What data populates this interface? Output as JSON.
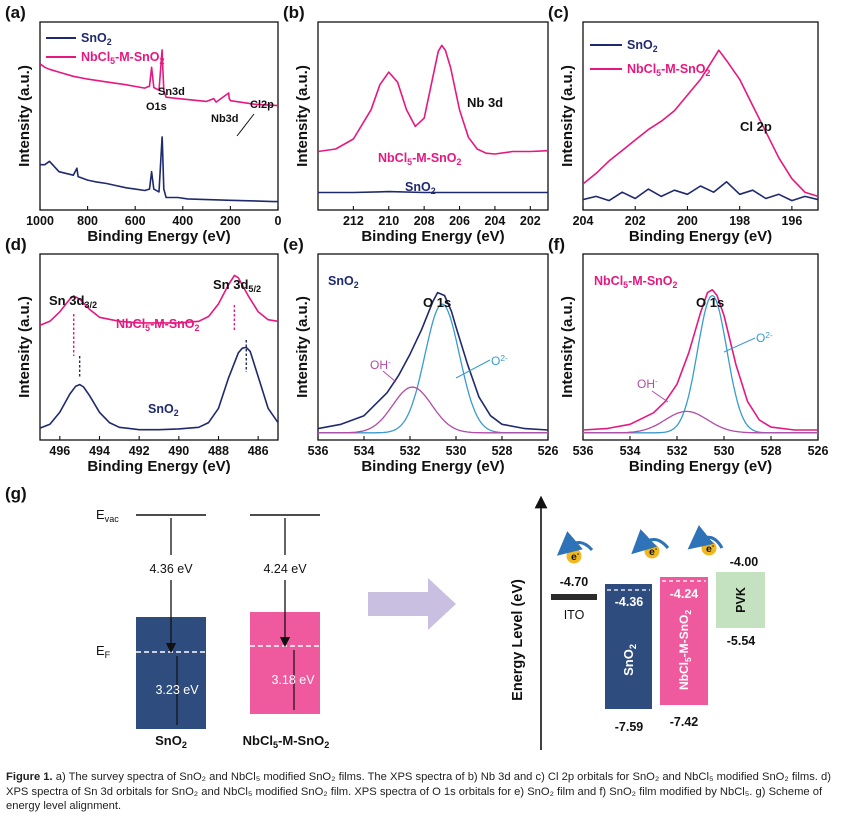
{
  "colors": {
    "sno2": "#1f2a6e",
    "nb": "#e6187f",
    "fit_blue": "#3a9bd1",
    "fit_purple": "#b24aa6",
    "band_sno2": "#2f4c7f",
    "band_nb": "#ef5a9e",
    "pvk": "#c5e2c0",
    "ito": "#2b2b2b",
    "arrow_bg": "#c9bfe0",
    "electron": "#f0b81e"
  },
  "chart_data": [
    {
      "panel": "(a)",
      "type": "line",
      "xlabel": "Binding Energy (eV)",
      "ylabel": "Intensity (a.u.)",
      "xlim": [
        1000,
        0
      ],
      "x_reversed": true,
      "xticks": [
        "1000",
        "800",
        "600",
        "400",
        "200",
        "0"
      ],
      "series": [
        {
          "name": "SnO2",
          "label_main": "SnO",
          "label_sub": "2",
          "color": "#1f2a6e",
          "x": [
            1000,
            980,
            960,
            920,
            860,
            845,
            840,
            800,
            760,
            720,
            680,
            640,
            600,
            560,
            540,
            531,
            522,
            500,
            487,
            486,
            480,
            470,
            420,
            380,
            300,
            200,
            100,
            20,
            0
          ],
          "y": [
            0.55,
            0.55,
            0.6,
            0.45,
            0.4,
            0.5,
            0.38,
            0.33,
            0.3,
            0.28,
            0.25,
            0.22,
            0.2,
            0.18,
            0.2,
            0.45,
            0.2,
            0.16,
            0.95,
            0.9,
            0.2,
            0.08,
            0.08,
            0.06,
            0.05,
            0.04,
            0.03,
            0.02,
            0.02
          ]
        },
        {
          "name": "NbCl5-M-SnO2",
          "label_main": "NbCl",
          "label_sub": "5",
          "label_tail": "-M-SnO",
          "label_sub2": "2",
          "color": "#e6187f",
          "x": [
            1000,
            980,
            960,
            920,
            860,
            800,
            720,
            640,
            560,
            540,
            531,
            522,
            500,
            487,
            486,
            480,
            470,
            420,
            300,
            270,
            260,
            207,
            205,
            199,
            100,
            0
          ],
          "y": [
            2.0,
            1.95,
            1.92,
            1.88,
            1.82,
            1.78,
            1.74,
            1.7,
            1.65,
            1.68,
            1.95,
            1.66,
            1.62,
            2.2,
            2.1,
            1.62,
            1.52,
            1.5,
            1.46,
            1.5,
            1.45,
            1.58,
            1.5,
            1.47,
            1.42,
            1.4
          ]
        }
      ],
      "annotations": [
        {
          "text": "O1s",
          "x": 531
        },
        {
          "text": "Sn3d",
          "x": 487
        },
        {
          "text": "Nb3d",
          "x": 207
        },
        {
          "text": "Cl2p",
          "x": 199
        }
      ]
    },
    {
      "panel": "(b)",
      "type": "line",
      "xlabel": "Binding Energy (eV)",
      "ylabel": "Intensity (a.u.)",
      "xlim": [
        214,
        201
      ],
      "x_reversed": true,
      "xticks": [
        "212",
        "210",
        "208",
        "206",
        "204",
        "202"
      ],
      "series": [
        {
          "name": "NbCl5-M-SnO2",
          "color": "#e6187f",
          "x": [
            214,
            213,
            212,
            211,
            210.5,
            210,
            209.5,
            209,
            208.5,
            208,
            207.5,
            207.2,
            207,
            206.8,
            206.5,
            206,
            205.5,
            205,
            204.5,
            204,
            203,
            202,
            201
          ],
          "y": [
            0.55,
            0.58,
            0.7,
            1.05,
            1.35,
            1.5,
            1.38,
            1.05,
            0.85,
            0.95,
            1.45,
            1.75,
            1.82,
            1.76,
            1.55,
            1.05,
            0.72,
            0.58,
            0.53,
            0.52,
            0.55,
            0.55,
            0.56
          ]
        },
        {
          "name": "SnO2",
          "color": "#1f2a6e",
          "x": [
            214,
            212,
            210,
            208,
            206,
            204,
            202,
            201
          ],
          "y": [
            0.06,
            0.06,
            0.07,
            0.06,
            0.06,
            0.06,
            0.06,
            0.06
          ]
        }
      ],
      "annotations": [
        {
          "text": "Nb 3d"
        },
        {
          "text": "NbCl5-M-SnO2"
        },
        {
          "text": "SnO2"
        }
      ]
    },
    {
      "panel": "(c)",
      "type": "line",
      "xlabel": "Binding Energy (eV)",
      "ylabel": "Intensity (a.u.)",
      "xlim": [
        204,
        195
      ],
      "x_reversed": true,
      "xticks": [
        "204",
        "202",
        "200",
        "198",
        "196"
      ],
      "series": [
        {
          "name": "SnO2",
          "color": "#1f2a6e",
          "x": [
            204,
            203.5,
            203,
            202.5,
            202,
            201.5,
            201,
            200.5,
            200,
            199.5,
            199,
            198.5,
            198,
            197.5,
            197,
            196.5,
            196,
            195.5,
            195
          ],
          "y": [
            0.05,
            0.08,
            0.04,
            0.12,
            0.06,
            0.15,
            0.08,
            0.14,
            0.1,
            0.18,
            0.12,
            0.22,
            0.1,
            0.14,
            0.06,
            0.1,
            0.04,
            0.08,
            0.05
          ]
        },
        {
          "name": "NbCl5-M-SnO2",
          "color": "#e6187f",
          "x": [
            204,
            203.5,
            203,
            202.5,
            202,
            201.5,
            201,
            200.5,
            200,
            199.5,
            199,
            198.8,
            198.5,
            198,
            197.5,
            197,
            196.5,
            196,
            195.5,
            195
          ],
          "y": [
            0.2,
            0.3,
            0.42,
            0.52,
            0.62,
            0.72,
            0.8,
            0.9,
            1.05,
            1.2,
            1.4,
            1.48,
            1.38,
            1.2,
            0.95,
            0.7,
            0.45,
            0.25,
            0.12,
            0.08
          ]
        }
      ],
      "annotations": [
        {
          "text": "Cl 2p"
        }
      ]
    },
    {
      "panel": "(d)",
      "type": "line",
      "xlabel": "Binding Energy (eV)",
      "ylabel": "Intensity (a.u.)",
      "xlim": [
        497,
        485
      ],
      "x_reversed": true,
      "xticks": [
        "496",
        "494",
        "492",
        "490",
        "488",
        "486"
      ],
      "series": [
        {
          "name": "SnO2",
          "color": "#1f2a6e",
          "x": [
            497,
            496.5,
            496,
            495.5,
            495.2,
            495,
            494.8,
            494.5,
            494,
            493.5,
            493,
            492,
            491,
            490,
            489,
            488.5,
            488,
            487.5,
            487,
            486.8,
            486.6,
            486.4,
            486,
            485.5,
            485
          ],
          "y": [
            0.05,
            0.1,
            0.25,
            0.48,
            0.58,
            0.6,
            0.57,
            0.46,
            0.25,
            0.12,
            0.06,
            0.03,
            0.03,
            0.04,
            0.06,
            0.12,
            0.3,
            0.68,
            1.0,
            1.06,
            1.07,
            1.02,
            0.7,
            0.3,
            0.12
          ]
        },
        {
          "name": "NbCl5-M-SnO2",
          "color": "#e6187f",
          "x": [
            497,
            496.5,
            496,
            495.5,
            495.3,
            495,
            494.5,
            494,
            493,
            492,
            491,
            490,
            489,
            488.5,
            488,
            487.5,
            487.2,
            487,
            486.5,
            486,
            485.5,
            485
          ],
          "y": [
            1.35,
            1.4,
            1.52,
            1.68,
            1.72,
            1.68,
            1.55,
            1.45,
            1.4,
            1.38,
            1.38,
            1.38,
            1.4,
            1.46,
            1.62,
            1.86,
            1.98,
            1.95,
            1.72,
            1.52,
            1.42,
            1.4
          ]
        }
      ],
      "annotations": [
        {
          "text": "Sn 3d",
          "sub": "3/2"
        },
        {
          "text": "Sn 3d",
          "sub": "5/2"
        },
        {
          "text": "NbCl5-M-SnO2"
        },
        {
          "text": "SnO2"
        }
      ]
    },
    {
      "panel": "(e)",
      "type": "line",
      "title": "SnO2",
      "xlabel": "Binding Energy (eV)",
      "ylabel": "Intensity (a.u.)",
      "xlim": [
        536,
        526
      ],
      "x_reversed": true,
      "xticks": [
        "536",
        "534",
        "532",
        "530",
        "528",
        "526"
      ],
      "series": [
        {
          "name": "data",
          "color": "#1f2a6e",
          "x": [
            536,
            535,
            534,
            533,
            532.5,
            532,
            531.5,
            531,
            530.8,
            530.5,
            530.2,
            530,
            529.5,
            529,
            528.5,
            528,
            527,
            526
          ],
          "y": [
            0.03,
            0.06,
            0.12,
            0.28,
            0.4,
            0.55,
            0.72,
            0.92,
            0.98,
            0.96,
            0.85,
            0.74,
            0.48,
            0.25,
            0.12,
            0.06,
            0.03,
            0.02
          ]
        },
        {
          "name": "O2-",
          "color": "#3a9bd1",
          "peak": {
            "center": 530.6,
            "height": 0.9,
            "sigma": 0.75
          }
        },
        {
          "name": "OH-",
          "color": "#b24aa6",
          "peak": {
            "center": 531.9,
            "height": 0.32,
            "sigma": 0.85
          }
        }
      ],
      "annotations": [
        {
          "text": "O 1s"
        },
        {
          "text": "OH",
          "sup": "-"
        },
        {
          "text": "O",
          "sup": "2-"
        }
      ]
    },
    {
      "panel": "(f)",
      "type": "line",
      "title": "NbCl5-M-SnO2",
      "xlabel": "Binding Energy (eV)",
      "ylabel": "Intensity (a.u.)",
      "xlim": [
        536,
        526
      ],
      "x_reversed": true,
      "xticks": [
        "536",
        "534",
        "532",
        "530",
        "528",
        "526"
      ],
      "series": [
        {
          "name": "data",
          "color": "#e6187f",
          "x": [
            536,
            535,
            534,
            533,
            532.5,
            532,
            531.5,
            531,
            530.7,
            530.5,
            530.3,
            530,
            529.5,
            529,
            528.5,
            528,
            527,
            526
          ],
          "y": [
            0.02,
            0.03,
            0.06,
            0.14,
            0.22,
            0.34,
            0.56,
            0.84,
            0.98,
            1.0,
            0.96,
            0.82,
            0.48,
            0.22,
            0.09,
            0.04,
            0.02,
            0.02
          ]
        },
        {
          "name": "O2-",
          "color": "#3a9bd1",
          "peak": {
            "center": 530.5,
            "height": 0.96,
            "sigma": 0.62
          }
        },
        {
          "name": "OH-",
          "color": "#b24aa6",
          "peak": {
            "center": 531.6,
            "height": 0.15,
            "sigma": 0.9
          }
        }
      ],
      "annotations": [
        {
          "text": "O 1s"
        },
        {
          "text": "OH",
          "sup": "-"
        },
        {
          "text": "O",
          "sup": "2-"
        }
      ]
    }
  ],
  "panel_labels": [
    "(a)",
    "(b)",
    "(c)",
    "(d)",
    "(e)",
    "(f)",
    "(g)"
  ],
  "axis_text": {
    "ylabel": "Intensity (a.u.)",
    "xlabel": "Binding Energy (eV)"
  },
  "labels": {
    "sno2_main": "SnO",
    "sub2": "2",
    "nb_main": "NbCl",
    "sub5": "5",
    "nb_mid": "-M-SnO",
    "o1s": "O 1s",
    "oh": "OH",
    "oh_sup": "-",
    "o2": "O",
    "o2_sup": "2-",
    "sn3d": "Sn 3d",
    "sub32": "3/2",
    "sub52": "5/2",
    "nb3d": "Nb 3d",
    "cl2p": "Cl 2p",
    "a_o1s": "O1s",
    "a_sn3d": "Sn3d",
    "a_nb3d": "Nb3d",
    "a_cl2p": "Cl2p"
  },
  "scheme_g": {
    "evac_main": "E",
    "evac_sub": "vac",
    "ef_main": "E",
    "ef_sub": "F",
    "sno2_wf": "4.36 eV",
    "nb_wf": "4.24 eV",
    "sno2_gap": "3.23 eV",
    "nb_gap": "3.18 eV",
    "sno2_label": "SnO2",
    "nb_label": "NbCl5-M-SnO2",
    "energy_axis": "Energy Level (eV)",
    "ito": "ITO",
    "ito_level": "-4.70",
    "sno2_cb": "-4.36",
    "sno2_vb": "-7.59",
    "nb_cb": "-4.24",
    "nb_vb": "-7.42",
    "pvk": "PVK",
    "pvk_cb": "-4.00",
    "pvk_vb": "-5.54",
    "electron": "e",
    "electron_sup": "-"
  },
  "caption": {
    "lead": "Figure 1.",
    "text": " a) The survey spectra of SnO₂ and NbCl₅ modified SnO₂ films. The XPS spectra of b) Nb 3d and c) Cl 2p orbitals for SnO₂ and NbCl₅ modified SnO₂ films. d) XPS spectra of Sn 3d orbitals for SnO₂ and NbCl₅ modified SnO₂ film. XPS spectra of O 1s orbitals for e) SnO₂ film and f) SnO₂ film modified by NbCl₅. g) Scheme of energy level alignment."
  }
}
